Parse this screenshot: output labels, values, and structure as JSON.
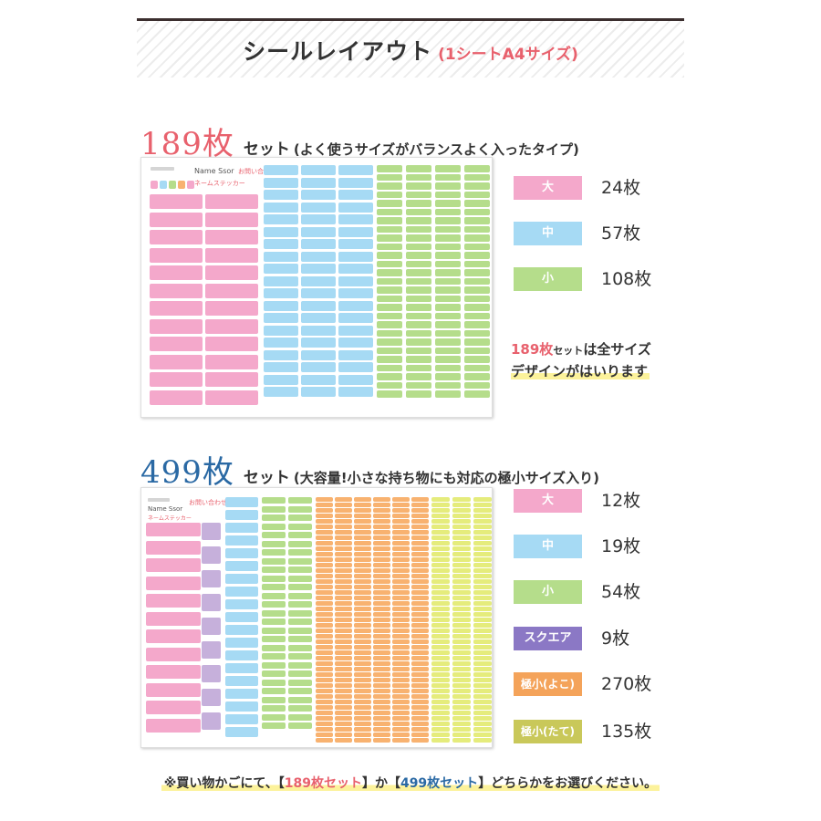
{
  "banner": {
    "title": "シールレイアウト",
    "subtitle": "(1シートA4サイズ)"
  },
  "set189": {
    "count": "189",
    "unit": "枚",
    "set_label": "セット",
    "description": "(よく使うサイズがバランスよく入ったタイプ)",
    "legend": [
      {
        "label": "大",
        "qty": "24枚",
        "color": "#f4a8cb"
      },
      {
        "label": "中",
        "qty": "57枚",
        "color": "#a6daf4"
      },
      {
        "label": "小",
        "qty": "108枚",
        "color": "#b5dd8b"
      }
    ],
    "note": {
      "highlight": "189枚",
      "small": "セット",
      "line1_rest": "は全サイズ",
      "line2": "デザインがはいります"
    }
  },
  "set499": {
    "count": "499",
    "unit": "枚",
    "set_label": "セット",
    "description": "(大容量!小さな持ち物にも対応の極小サイズ入り)",
    "legend": [
      {
        "label": "大",
        "qty": "12枚",
        "color": "#f4a8cb"
      },
      {
        "label": "中",
        "qty": "19枚",
        "color": "#a6daf4"
      },
      {
        "label": "小",
        "qty": "54枚",
        "color": "#b5dd8b"
      },
      {
        "label": "スクエア",
        "qty": "9枚",
        "color": "#8b78c5"
      },
      {
        "label": "極小(よこ)",
        "qty": "270枚",
        "color": "#f4a35a"
      },
      {
        "label": "極小(たて)",
        "qty": "135枚",
        "color": "#c9c85a"
      }
    ]
  },
  "sample": {
    "name": "Name Ssor",
    "name_sub": "ネームステッカー",
    "contact_title": "お問い合わせ先"
  },
  "footer": {
    "prefix": "※買い物かごにて、【",
    "set1": "189枚セット",
    "mid": "】か【",
    "set2": "499枚セット",
    "suffix": "】どちらかをお選びください。"
  }
}
